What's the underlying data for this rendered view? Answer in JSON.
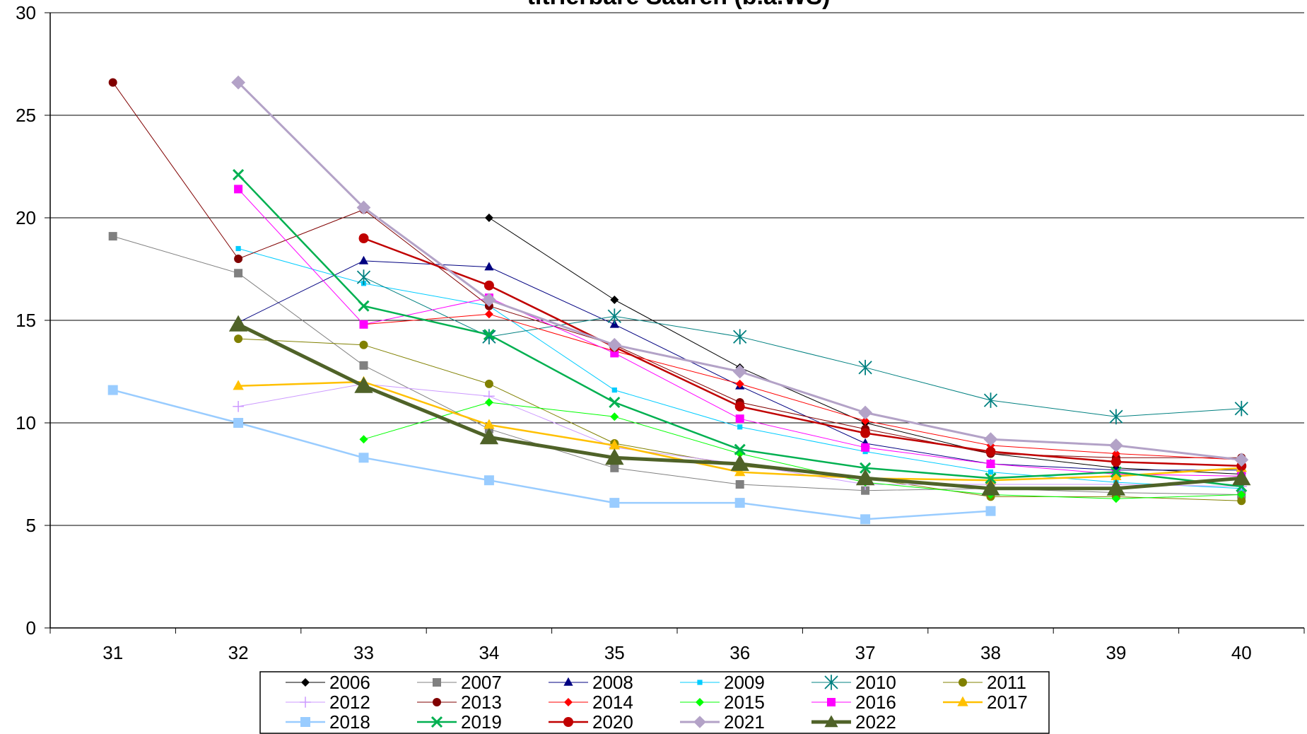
{
  "chart_data": {
    "type": "line",
    "title": "titrierbare Säuren (b.a.WS)",
    "xlabel": "",
    "ylabel": "",
    "x": [
      31,
      32,
      33,
      34,
      35,
      36,
      37,
      38,
      39,
      40
    ],
    "ylim": [
      0,
      30
    ],
    "yticks": [
      0,
      5,
      10,
      15,
      20,
      25,
      30
    ],
    "grid": "horizontal",
    "legend_position": "bottom",
    "series": [
      {
        "name": "2006",
        "color": "#000000",
        "marker": "diamond",
        "weight": "thin",
        "values": [
          null,
          null,
          null,
          20.0,
          16.0,
          12.7,
          10.0,
          8.5,
          7.8,
          7.5
        ]
      },
      {
        "name": "2007",
        "color": "#808080",
        "marker": "square",
        "weight": "thin",
        "values": [
          19.1,
          17.3,
          12.8,
          9.7,
          7.8,
          7.0,
          6.7,
          6.8,
          6.6,
          6.5
        ]
      },
      {
        "name": "2008",
        "color": "#000080",
        "marker": "triangle",
        "weight": "thin",
        "values": [
          null,
          14.9,
          17.9,
          17.6,
          14.8,
          11.8,
          9.0,
          8.0,
          7.7,
          7.7
        ]
      },
      {
        "name": "2009",
        "color": "#00ccff",
        "marker": "small-square",
        "weight": "thin",
        "values": [
          null,
          18.5,
          16.8,
          15.7,
          11.6,
          9.8,
          8.6,
          7.6,
          7.1,
          6.8
        ]
      },
      {
        "name": "2010",
        "color": "#008080",
        "marker": "star",
        "weight": "thin",
        "values": [
          null,
          null,
          17.1,
          14.2,
          15.2,
          14.2,
          12.7,
          11.1,
          10.3,
          10.7
        ]
      },
      {
        "name": "2011",
        "color": "#808000",
        "marker": "circle",
        "weight": "thin",
        "values": [
          null,
          14.1,
          13.8,
          11.9,
          9.0,
          7.9,
          7.3,
          6.4,
          6.4,
          6.2
        ]
      },
      {
        "name": "2012",
        "color": "#cc99ff",
        "marker": "plus",
        "weight": "thin",
        "values": [
          null,
          10.8,
          11.9,
          11.3,
          8.8,
          8.0,
          7.0,
          7.0,
          7.0,
          6.9
        ]
      },
      {
        "name": "2013",
        "color": "#800000",
        "marker": "circle",
        "weight": "thin",
        "values": [
          26.6,
          18.0,
          20.4,
          15.7,
          13.8,
          11.0,
          9.7,
          8.5,
          8.3,
          8.3
        ]
      },
      {
        "name": "2014",
        "color": "#ff0000",
        "marker": "diamond",
        "weight": "thin",
        "values": [
          null,
          null,
          14.8,
          15.3,
          13.5,
          11.9,
          10.1,
          8.9,
          8.5,
          8.2
        ]
      },
      {
        "name": "2015",
        "color": "#00ff00",
        "marker": "diamond",
        "weight": "thin",
        "values": [
          null,
          null,
          9.2,
          11.0,
          10.3,
          8.5,
          7.1,
          6.5,
          6.3,
          6.5
        ]
      },
      {
        "name": "2016",
        "color": "#ff00ff",
        "marker": "square",
        "weight": "thin",
        "values": [
          null,
          21.4,
          14.8,
          16.1,
          13.4,
          10.2,
          8.8,
          8.0,
          7.5,
          7.4
        ]
      },
      {
        "name": "2017",
        "color": "#ffc000",
        "marker": "triangle",
        "weight": "medium",
        "values": [
          null,
          11.8,
          12.0,
          9.9,
          8.9,
          7.6,
          7.3,
          7.2,
          7.4,
          7.8
        ]
      },
      {
        "name": "2018",
        "color": "#99ccff",
        "marker": "square",
        "weight": "medium",
        "values": [
          11.6,
          10.0,
          8.3,
          7.2,
          6.1,
          6.1,
          5.3,
          5.7,
          null,
          null
        ]
      },
      {
        "name": "2019",
        "color": "#00b050",
        "marker": "x",
        "weight": "medium",
        "values": [
          null,
          22.1,
          15.7,
          14.3,
          11.0,
          8.7,
          7.8,
          7.3,
          7.6,
          6.9
        ]
      },
      {
        "name": "2020",
        "color": "#c00000",
        "marker": "circle",
        "weight": "medium",
        "values": [
          null,
          null,
          19.0,
          16.7,
          13.7,
          10.8,
          9.5,
          8.6,
          8.1,
          7.9
        ]
      },
      {
        "name": "2021",
        "color": "#b3a2c7",
        "marker": "big-diamond",
        "weight": "thick",
        "values": [
          null,
          26.6,
          20.5,
          16.0,
          13.8,
          12.5,
          10.5,
          9.2,
          8.9,
          8.2
        ]
      },
      {
        "name": "2022",
        "color": "#4f6228",
        "marker": "big-triangle",
        "weight": "thickest",
        "values": [
          null,
          14.8,
          11.8,
          9.3,
          8.3,
          8.0,
          7.3,
          6.8,
          6.8,
          7.3
        ]
      }
    ]
  }
}
